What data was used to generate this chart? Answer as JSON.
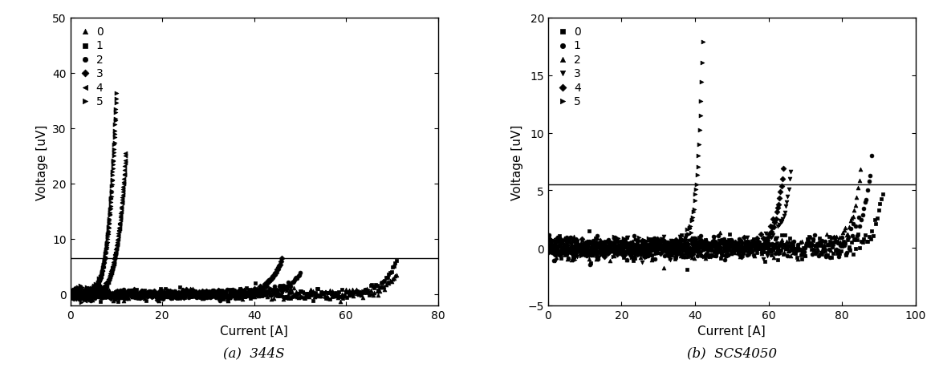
{
  "panel_a": {
    "title": "(a)  344S",
    "xlabel": "Current [A]",
    "ylabel": "Voltage [uV]",
    "xlim": [
      0,
      80
    ],
    "ylim": [
      -2,
      50
    ],
    "hline": 6.5,
    "yticks": [
      0,
      10,
      20,
      30,
      40,
      50
    ],
    "xticks": [
      0,
      20,
      40,
      60,
      80
    ],
    "series": [
      {
        "label": "0",
        "marker": "^",
        "Ic": 67.0,
        "n": 22,
        "V0": 1.0,
        "Imax": 71,
        "noise": 0.5,
        "I_noise_end": 70
      },
      {
        "label": "1",
        "marker": "s",
        "Ic": 65.5,
        "n": 22,
        "V0": 1.0,
        "Imax": 71,
        "noise": 0.5,
        "I_noise_end": 70
      },
      {
        "label": "2",
        "marker": "o",
        "Ic": 46.0,
        "n": 16,
        "V0": 1.0,
        "Imax": 50,
        "noise": 0.4,
        "I_noise_end": 50
      },
      {
        "label": "3",
        "marker": "D",
        "Ic": 41.0,
        "n": 16,
        "V0": 1.0,
        "Imax": 46,
        "noise": 0.4,
        "I_noise_end": 46
      },
      {
        "label": "4",
        "marker": "<",
        "Ic": 7.0,
        "n": 6,
        "V0": 1.0,
        "Imax": 12,
        "noise": 0.5,
        "I_noise_end": 12
      },
      {
        "label": "5",
        "marker": ">",
        "Ic": 5.5,
        "n": 6,
        "V0": 1.0,
        "Imax": 10,
        "noise": 0.5,
        "I_noise_end": 10
      }
    ]
  },
  "panel_b": {
    "title": "(b)  SCS4050",
    "xlabel": "Current [A]",
    "ylabel": "Voltage [uV]",
    "xlim": [
      0,
      100
    ],
    "ylim": [
      -5,
      20
    ],
    "hline": 5.5,
    "yticks": [
      -5,
      0,
      5,
      10,
      15,
      20
    ],
    "xticks": [
      0,
      20,
      40,
      60,
      80,
      100
    ],
    "series": [
      {
        "label": "0",
        "marker": "s",
        "Ic": 87.0,
        "n": 35,
        "V0": 1.0,
        "Imax": 91,
        "noise": 0.5,
        "I_noise_end": 91
      },
      {
        "label": "1",
        "marker": "o",
        "Ic": 83.0,
        "n": 35,
        "V0": 1.0,
        "Imax": 88,
        "noise": 0.5,
        "I_noise_end": 88
      },
      {
        "label": "2",
        "marker": "^",
        "Ic": 80.5,
        "n": 35,
        "V0": 1.0,
        "Imax": 85,
        "noise": 0.5,
        "I_noise_end": 85
      },
      {
        "label": "3",
        "marker": "v",
        "Ic": 62.0,
        "n": 30,
        "V0": 1.0,
        "Imax": 66,
        "noise": 0.4,
        "I_noise_end": 66
      },
      {
        "label": "4",
        "marker": "D",
        "Ic": 60.0,
        "n": 30,
        "V0": 1.0,
        "Imax": 64,
        "noise": 0.4,
        "I_noise_end": 64
      },
      {
        "label": "5",
        "marker": ">",
        "Ic": 38.0,
        "n": 28,
        "V0": 1.0,
        "Imax": 43,
        "noise": 0.4,
        "I_noise_end": 43
      }
    ]
  },
  "color": "black",
  "markersize": 3.5,
  "linewidth": 0.0
}
